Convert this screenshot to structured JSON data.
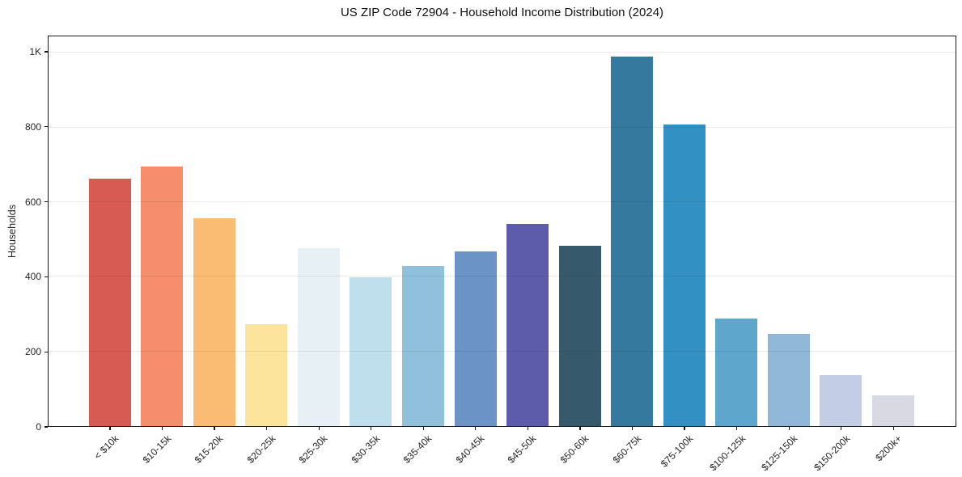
{
  "chart_data": {
    "type": "bar",
    "title": "US ZIP Code 72904 - Household Income Distribution (2024)",
    "xlabel": "",
    "ylabel": "Households",
    "categories": [
      "< $10k",
      "$10-15k",
      "$15-20k",
      "$20-25k",
      "$25-30k",
      "$30-35k",
      "$35-40k",
      "$40-45k",
      "$45-50k",
      "$50-60k",
      "$60-75k",
      "$75-100k",
      "$100-125k",
      "$125-150k",
      "$150-200k",
      "$200k+"
    ],
    "values": [
      664,
      695,
      556,
      273,
      477,
      398,
      428,
      469,
      542,
      484,
      990,
      808,
      288,
      247,
      136,
      83
    ],
    "bar_colors": [
      "#d85b53",
      "#f68e6d",
      "#fabb72",
      "#fce49d",
      "#e7f1f5",
      "#bedfeb",
      "#90c0db",
      "#6b93c6",
      "#5d5cab",
      "#36596b",
      "#36799f",
      "#3390c2",
      "#5ea6cc",
      "#91b7d9",
      "#c3cee6",
      "#d9d9e3"
    ],
    "ylim": [
      0,
      1043
    ],
    "yticks": [
      {
        "value": 0,
        "label": "0"
      },
      {
        "value": 200,
        "label": "200"
      },
      {
        "value": 400,
        "label": "400"
      },
      {
        "value": 600,
        "label": "600"
      },
      {
        "value": 800,
        "label": "800"
      },
      {
        "value": 1000,
        "label": "1K"
      }
    ],
    "grid": "horizontal",
    "legend": "none",
    "background_color": "#ffffff",
    "spine_color": "#1a1a1a",
    "grid_color": "#e8e8e8",
    "text_color": "#262626"
  }
}
